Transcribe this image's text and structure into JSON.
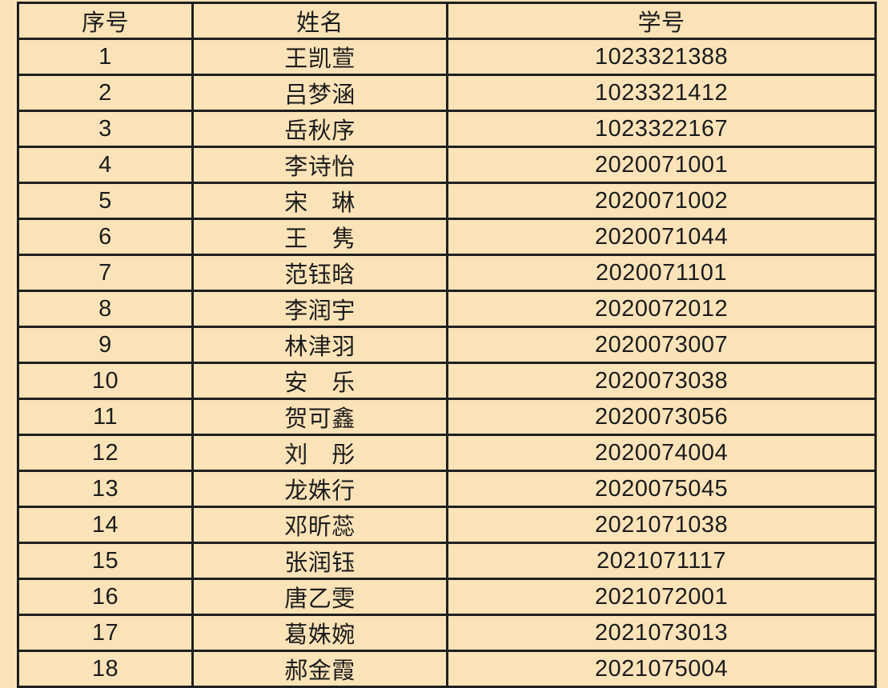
{
  "colors": {
    "background": "#FAE3B8",
    "border": "#1F1F1F",
    "text": "#1C1C1C"
  },
  "table": {
    "headers": {
      "index": "序号",
      "name": "姓名",
      "student_id": "学号"
    },
    "rows": [
      {
        "index": "1",
        "name": "王凯萱",
        "student_id": "1023321388"
      },
      {
        "index": "2",
        "name": "吕梦涵",
        "student_id": "1023321412"
      },
      {
        "index": "3",
        "name": "岳秋序",
        "student_id": "1023322167"
      },
      {
        "index": "4",
        "name": "李诗怡",
        "student_id": "2020071001"
      },
      {
        "index": "5",
        "name": "宋　琳",
        "student_id": "2020071002"
      },
      {
        "index": "6",
        "name": "王　隽",
        "student_id": "2020071044"
      },
      {
        "index": "7",
        "name": "范钰晗",
        "student_id": "2020071101"
      },
      {
        "index": "8",
        "name": "李润宇",
        "student_id": "2020072012"
      },
      {
        "index": "9",
        "name": "林津羽",
        "student_id": "2020073007"
      },
      {
        "index": "10",
        "name": "安　乐",
        "student_id": "2020073038"
      },
      {
        "index": "11",
        "name": "贺可鑫",
        "student_id": "2020073056"
      },
      {
        "index": "12",
        "name": "刘　彤",
        "student_id": "2020074004"
      },
      {
        "index": "13",
        "name": "龙姝行",
        "student_id": "2020075045"
      },
      {
        "index": "14",
        "name": "邓昕蕊",
        "student_id": "2021071038"
      },
      {
        "index": "15",
        "name": "张润钰",
        "student_id": "2021071117"
      },
      {
        "index": "16",
        "name": "唐乙雯",
        "student_id": "2021072001"
      },
      {
        "index": "17",
        "name": "葛姝婉",
        "student_id": "2021073013"
      },
      {
        "index": "18",
        "name": "郝金霞",
        "student_id": "2021075004"
      }
    ]
  }
}
